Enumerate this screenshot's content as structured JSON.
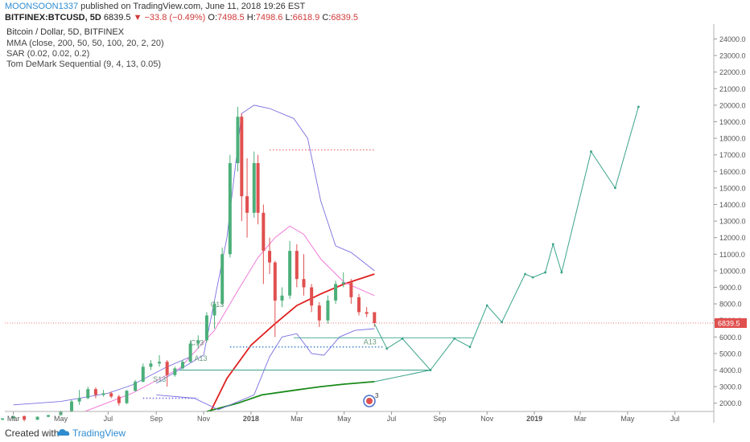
{
  "header": {
    "author": "MOONSOON1337",
    "published": "published on TradingView.com, June 11, 2018 19:26 EST",
    "symbol": "BITFINEX:BTCUSD, 5D",
    "last": "6839.5",
    "change": "▼ −33.8 (−0.49%)",
    "o_label": "O:",
    "o_value": "7498.5",
    "h_label": "H:",
    "h_value": "7498.6",
    "l_label": "L:",
    "l_value": "6618.9",
    "c_label": "C:",
    "c_value": "6839.5"
  },
  "legend": {
    "title": "Bitcoin / Dollar, 5D, BITFINEX",
    "indicators": [
      "MMA (close, 200, 50, 50, 100, 20, 2, 20)",
      "SAR (0.02, 0.02, 0.2)",
      "Tom DeMark Sequential (9, 4, 13, 0.05)"
    ]
  },
  "footer": {
    "created_with": "Created with",
    "brand": "TradingView"
  },
  "colors": {
    "up": "#4caf7a",
    "down": "#e0504f",
    "ma_red": "#e02020",
    "ma_green": "#1a8a1a",
    "ma_pink": "#f07ad8",
    "band_blue": "#7a6fe0",
    "projection": "#3aa38a",
    "price_line": "#e0504f",
    "axis_text": "#555555"
  },
  "chart_data": {
    "type": "candlestick",
    "title": "Bitcoin / Dollar, 5D, BITFINEX",
    "ylim": [
      1500,
      24800
    ],
    "y_ticks": [
      2000,
      3000,
      4000,
      5000,
      6000,
      7000,
      8000,
      9000,
      10000,
      11000,
      12000,
      13000,
      14000,
      15000,
      16000,
      17000,
      18000,
      19000,
      20000,
      21000,
      22000,
      23000,
      24000
    ],
    "x_ticks": [
      {
        "label": "Mar",
        "date": "2017-03-01"
      },
      {
        "label": "May",
        "date": "2017-05-01"
      },
      {
        "label": "Jul",
        "date": "2017-07-01"
      },
      {
        "label": "Sep",
        "date": "2017-09-01"
      },
      {
        "label": "Nov",
        "date": "2017-11-01"
      },
      {
        "label": "2018",
        "date": "2018-01-01",
        "bold": true
      },
      {
        "label": "Mar",
        "date": "2018-03-01"
      },
      {
        "label": "May",
        "date": "2018-05-01"
      },
      {
        "label": "Jul",
        "date": "2018-07-01"
      },
      {
        "label": "Sep",
        "date": "2018-09-01"
      },
      {
        "label": "Nov",
        "date": "2018-11-01"
      },
      {
        "label": "2019",
        "date": "2019-01-01",
        "bold": true
      },
      {
        "label": "Mar",
        "date": "2019-03-01"
      },
      {
        "label": "May",
        "date": "2019-05-01"
      },
      {
        "label": "Jul",
        "date": "2019-07-01"
      }
    ],
    "last_price": 6839.5,
    "last_price_label": "6839.5",
    "candles": [
      {
        "date": "2017-02-01",
        "o": 980,
        "h": 1020,
        "l": 950,
        "c": 1000
      },
      {
        "date": "2017-02-15",
        "o": 1000,
        "h": 1100,
        "l": 980,
        "c": 1080
      },
      {
        "date": "2017-03-01",
        "o": 1080,
        "h": 1250,
        "l": 1050,
        "c": 1220
      },
      {
        "date": "2017-03-15",
        "o": 1220,
        "h": 1250,
        "l": 900,
        "c": 1000
      },
      {
        "date": "2017-04-01",
        "o": 1000,
        "h": 1200,
        "l": 980,
        "c": 1180
      },
      {
        "date": "2017-04-15",
        "o": 1180,
        "h": 1300,
        "l": 1150,
        "c": 1280
      },
      {
        "date": "2017-05-01",
        "o": 1280,
        "h": 1550,
        "l": 1250,
        "c": 1500
      },
      {
        "date": "2017-05-15",
        "o": 1500,
        "h": 2200,
        "l": 1450,
        "c": 2100
      },
      {
        "date": "2017-05-25",
        "o": 2100,
        "h": 2800,
        "l": 1900,
        "c": 2300
      },
      {
        "date": "2017-06-05",
        "o": 2300,
        "h": 3000,
        "l": 2250,
        "c": 2850
      },
      {
        "date": "2017-06-15",
        "o": 2850,
        "h": 2950,
        "l": 2300,
        "c": 2500
      },
      {
        "date": "2017-06-25",
        "o": 2500,
        "h": 2800,
        "l": 2400,
        "c": 2600
      },
      {
        "date": "2017-07-05",
        "o": 2600,
        "h": 2700,
        "l": 2300,
        "c": 2400
      },
      {
        "date": "2017-07-15",
        "o": 2400,
        "h": 2500,
        "l": 1850,
        "c": 2000
      },
      {
        "date": "2017-07-25",
        "o": 2000,
        "h": 2800,
        "l": 1950,
        "c": 2750
      },
      {
        "date": "2017-08-05",
        "o": 2750,
        "h": 3400,
        "l": 2700,
        "c": 3300
      },
      {
        "date": "2017-08-15",
        "o": 3300,
        "h": 4400,
        "l": 3250,
        "c": 4200
      },
      {
        "date": "2017-08-25",
        "o": 4200,
        "h": 4600,
        "l": 4000,
        "c": 4400
      },
      {
        "date": "2017-09-05",
        "o": 4400,
        "h": 4900,
        "l": 4200,
        "c": 4500
      },
      {
        "date": "2017-09-15",
        "o": 4500,
        "h": 4600,
        "l": 3000,
        "c": 3700
      },
      {
        "date": "2017-09-25",
        "o": 3700,
        "h": 4200,
        "l": 3600,
        "c": 4100
      },
      {
        "date": "2017-10-05",
        "o": 4100,
        "h": 4600,
        "l": 4050,
        "c": 4500
      },
      {
        "date": "2017-10-15",
        "o": 4500,
        "h": 5800,
        "l": 4450,
        "c": 5600
      },
      {
        "date": "2017-10-25",
        "o": 5600,
        "h": 6100,
        "l": 5300,
        "c": 5800
      },
      {
        "date": "2017-11-05",
        "o": 5800,
        "h": 7500,
        "l": 5700,
        "c": 7300
      },
      {
        "date": "2017-11-15",
        "o": 7300,
        "h": 8200,
        "l": 6500,
        "c": 8000
      },
      {
        "date": "2017-11-25",
        "o": 8000,
        "h": 11400,
        "l": 7900,
        "c": 11000
      },
      {
        "date": "2017-12-05",
        "o": 11000,
        "h": 17000,
        "l": 10800,
        "c": 16500
      },
      {
        "date": "2017-12-15",
        "o": 16500,
        "h": 19900,
        "l": 16000,
        "c": 19300
      },
      {
        "date": "2017-12-20",
        "o": 19300,
        "h": 19500,
        "l": 13000,
        "c": 14500
      },
      {
        "date": "2017-12-27",
        "o": 14500,
        "h": 16800,
        "l": 12000,
        "c": 13500
      },
      {
        "date": "2018-01-05",
        "o": 13500,
        "h": 17200,
        "l": 13200,
        "c": 16500
      },
      {
        "date": "2018-01-10",
        "o": 16500,
        "h": 17000,
        "l": 12800,
        "c": 13500
      },
      {
        "date": "2018-01-17",
        "o": 13500,
        "h": 14000,
        "l": 9200,
        "c": 11200
      },
      {
        "date": "2018-01-25",
        "o": 11200,
        "h": 12000,
        "l": 9800,
        "c": 10500
      },
      {
        "date": "2018-02-01",
        "o": 10500,
        "h": 10600,
        "l": 6000,
        "c": 8200
      },
      {
        "date": "2018-02-10",
        "o": 8200,
        "h": 9000,
        "l": 7800,
        "c": 8500
      },
      {
        "date": "2018-02-20",
        "o": 8500,
        "h": 11800,
        "l": 8300,
        "c": 11200
      },
      {
        "date": "2018-03-01",
        "o": 11200,
        "h": 11600,
        "l": 9000,
        "c": 9500
      },
      {
        "date": "2018-03-10",
        "o": 9500,
        "h": 11000,
        "l": 8500,
        "c": 9000
      },
      {
        "date": "2018-03-20",
        "o": 9000,
        "h": 9200,
        "l": 7500,
        "c": 7900
      },
      {
        "date": "2018-03-30",
        "o": 7900,
        "h": 8100,
        "l": 6600,
        "c": 7000
      },
      {
        "date": "2018-04-10",
        "o": 7000,
        "h": 8500,
        "l": 6800,
        "c": 8200
      },
      {
        "date": "2018-04-20",
        "o": 8200,
        "h": 9400,
        "l": 8000,
        "c": 9200
      },
      {
        "date": "2018-04-30",
        "o": 9200,
        "h": 9900,
        "l": 9000,
        "c": 9300
      },
      {
        "date": "2018-05-10",
        "o": 9300,
        "h": 9500,
        "l": 8000,
        "c": 8400
      },
      {
        "date": "2018-05-20",
        "o": 8400,
        "h": 8600,
        "l": 7300,
        "c": 7500
      },
      {
        "date": "2018-05-30",
        "o": 7500,
        "h": 7800,
        "l": 7200,
        "c": 7400
      },
      {
        "date": "2018-06-09",
        "o": 7498.5,
        "h": 7498.6,
        "l": 6618.9,
        "c": 6839.5
      }
    ],
    "series": [
      {
        "name": "MMA (close, 200, 50, 50, 100, 20, 2, 20)",
        "role": "ma200",
        "points": [
          [
            "2017-11-10",
            1500
          ],
          [
            "2017-12-01",
            3500
          ],
          [
            "2018-01-01",
            5500
          ],
          [
            "2018-02-01",
            6800
          ],
          [
            "2018-03-01",
            7900
          ],
          [
            "2018-04-01",
            8600
          ],
          [
            "2018-05-01",
            9200
          ],
          [
            "2018-06-09",
            9800
          ]
        ]
      },
      {
        "name": "",
        "role": "ma_long",
        "points": [
          [
            "2017-11-05",
            1500
          ],
          [
            "2017-12-15",
            2000
          ],
          [
            "2018-01-15",
            2500
          ],
          [
            "2018-03-01",
            2800
          ],
          [
            "2018-04-01",
            3000
          ],
          [
            "2018-05-01",
            3150
          ],
          [
            "2018-06-09",
            3300
          ]
        ]
      },
      {
        "name": "",
        "role": "ma_mid",
        "points": [
          [
            "2017-06-01",
            1500
          ],
          [
            "2017-08-01",
            2600
          ],
          [
            "2017-10-01",
            4100
          ],
          [
            "2017-11-15",
            6400
          ],
          [
            "2017-12-15",
            8800
          ],
          [
            "2018-01-10",
            10800
          ],
          [
            "2018-02-01",
            12000
          ],
          [
            "2018-02-20",
            12700
          ],
          [
            "2018-03-10",
            12200
          ],
          [
            "2018-04-01",
            10700
          ],
          [
            "2018-05-01",
            9300
          ],
          [
            "2018-06-09",
            8500
          ]
        ]
      },
      {
        "name": "",
        "role": "band",
        "points": [
          [
            "2017-09-01",
            3200
          ],
          [
            "2017-11-01",
            4900
          ],
          [
            "2017-12-01",
            12000
          ],
          [
            "2017-12-20",
            19500
          ],
          [
            "2018-01-05",
            20000
          ],
          [
            "2018-01-25",
            19800
          ],
          [
            "2018-02-25",
            19200
          ],
          [
            "2018-03-15",
            18000
          ],
          [
            "2018-04-01",
            14200
          ],
          [
            "2018-04-20",
            11500
          ],
          [
            "2018-05-10",
            11100
          ],
          [
            "2018-06-09",
            10000
          ]
        ]
      },
      {
        "name": "",
        "role": "band",
        "points": [
          [
            "2017-09-01",
            2500
          ],
          [
            "2017-10-20",
            2300
          ],
          [
            "2017-11-20",
            1600
          ],
          [
            "2018-01-05",
            2500
          ],
          [
            "2018-01-25",
            4800
          ],
          [
            "2018-02-10",
            6000
          ],
          [
            "2018-03-01",
            6200
          ],
          [
            "2018-03-20",
            5000
          ],
          [
            "2018-04-05",
            4900
          ],
          [
            "2018-04-25",
            6000
          ],
          [
            "2018-05-15",
            6400
          ],
          [
            "2018-06-09",
            6500
          ]
        ]
      },
      {
        "name": "",
        "role": "band",
        "points": [
          [
            "2017-03-01",
            1900
          ],
          [
            "2017-05-01",
            2100
          ],
          [
            "2017-07-01",
            2600
          ],
          [
            "2017-08-01",
            3100
          ],
          [
            "2017-09-15",
            4200
          ],
          [
            "2017-10-15",
            4800
          ]
        ]
      },
      {
        "name": "",
        "role": "projection",
        "points": [
          [
            "2018-06-09",
            6800
          ],
          [
            "2018-06-25",
            5300
          ],
          [
            "2018-07-15",
            5900
          ],
          [
            "2018-08-20",
            4000
          ],
          [
            "2018-09-20",
            5900
          ],
          [
            "2018-10-10",
            5400
          ],
          [
            "2018-11-01",
            7900
          ],
          [
            "2018-11-20",
            6900
          ],
          [
            "2018-12-20",
            9800
          ],
          [
            "2018-12-30",
            9600
          ],
          [
            "2019-01-15",
            9900
          ],
          [
            "2019-01-25",
            11600
          ],
          [
            "2019-02-05",
            9900
          ],
          [
            "2019-03-15",
            17200
          ],
          [
            "2019-04-15",
            15000
          ],
          [
            "2019-05-15",
            19900
          ]
        ]
      },
      {
        "name": "",
        "role": "projection",
        "points": [
          [
            "2018-06-09",
            3300
          ],
          [
            "2018-08-20",
            4000
          ]
        ]
      }
    ],
    "horizontal_levels": [
      {
        "y": 17300,
        "x0": "2018-01-25",
        "x1": "2018-06-10",
        "style": "dotted",
        "color": "#f08080"
      },
      {
        "y": 5950,
        "x0": "2018-02-25",
        "x1": "2018-10-15",
        "style": "solid",
        "color": "#3aa38a"
      },
      {
        "y": 5400,
        "x0": "2017-12-05",
        "x1": "2018-06-20",
        "style": "dotted",
        "color": "#4a8ad0"
      },
      {
        "y": 4000,
        "x0": "2017-10-01",
        "x1": "2018-08-20",
        "style": "solid",
        "color": "#3aa38a"
      },
      {
        "y": 2300,
        "x0": "2017-08-15",
        "x1": "2017-10-25",
        "style": "dotted",
        "color": "#7a6fe0"
      }
    ],
    "annotations": [
      {
        "text": "C13",
        "date": "2017-11-10",
        "y": 7800
      },
      {
        "text": "C13",
        "date": "2017-10-15",
        "y": 5500
      },
      {
        "text": "A13",
        "date": "2017-10-20",
        "y": 4550
      },
      {
        "text": "S13",
        "date": "2017-08-28",
        "y": 3300
      },
      {
        "text": "A13",
        "date": "2018-05-26",
        "y": 5550
      }
    ]
  }
}
